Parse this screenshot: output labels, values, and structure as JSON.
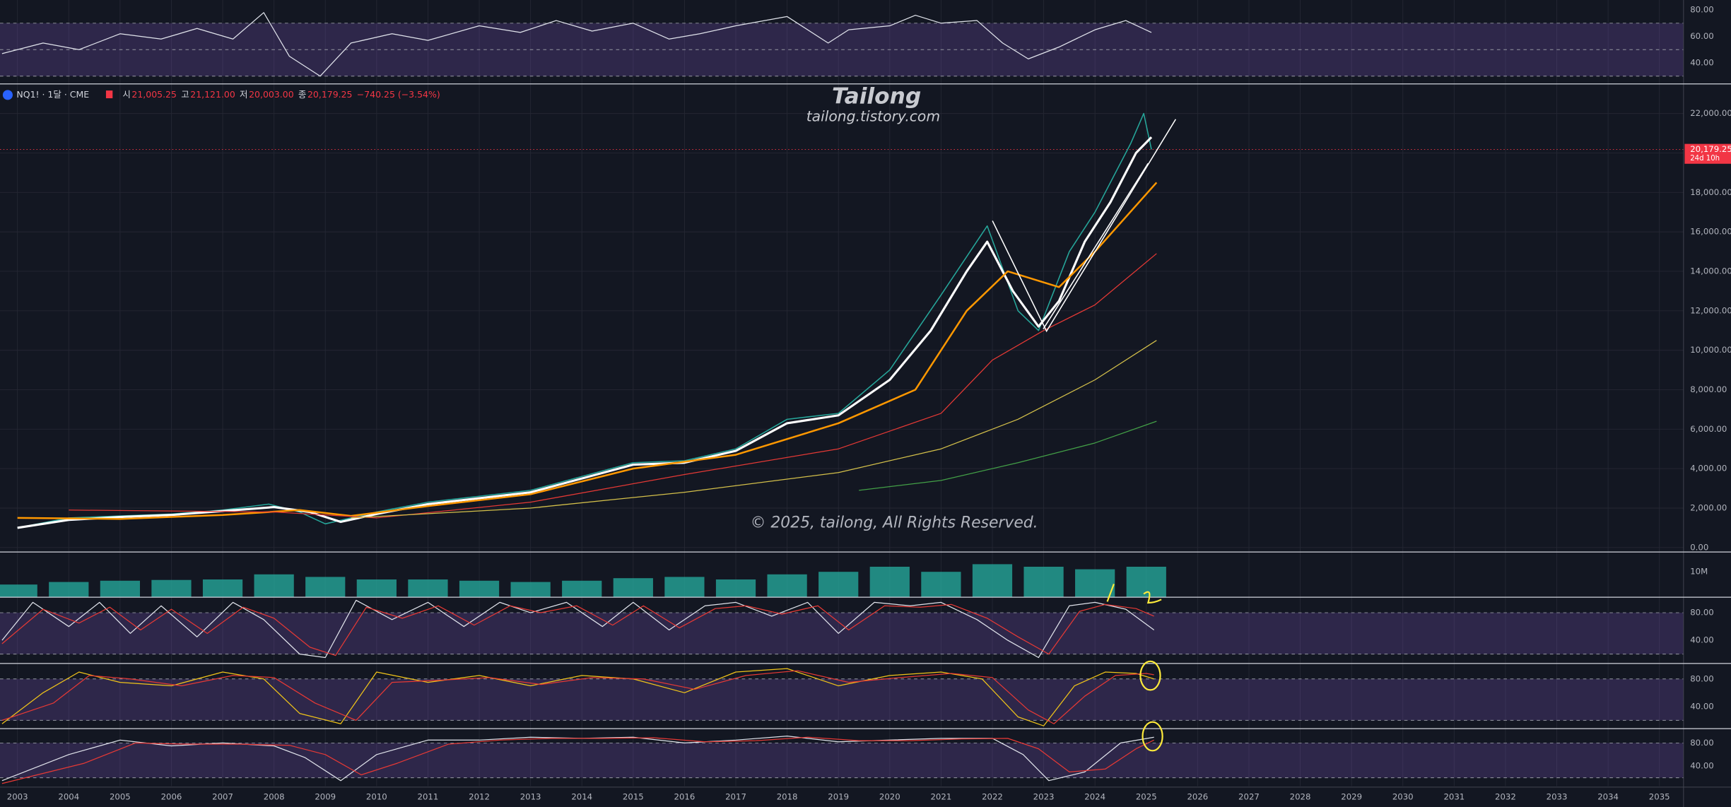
{
  "header": {
    "symbol": "NQ1! · 1달 · CME",
    "ohlc": [
      {
        "label": "시",
        "value": "21,005.25"
      },
      {
        "label": "고",
        "value": "21,121.00"
      },
      {
        "label": "저",
        "value": "20,003.00"
      },
      {
        "label": "종",
        "value": "20,179.25"
      }
    ],
    "change": "−740.25 (−3.54%)"
  },
  "watermark": {
    "title": "Tailong",
    "url": "tailong.tistory.com",
    "copyright": "© 2025, tailong, All Rights Reserved."
  },
  "chart_data": {
    "type": "line",
    "xlim": [
      2002.66,
      2035.47
    ],
    "xticks": [
      2003,
      2004,
      2005,
      2006,
      2007,
      2008,
      2009,
      2010,
      2011,
      2012,
      2013,
      2014,
      2015,
      2016,
      2017,
      2018,
      2019,
      2020,
      2021,
      2022,
      2023,
      2024,
      2025,
      2026,
      2027,
      2028,
      2029,
      2030,
      2031,
      2032,
      2033,
      2034,
      2035
    ],
    "panes": [
      {
        "type": "line",
        "ylim": [
          25.8,
          87.5
        ],
        "yticks": [
          {
            "value": 80,
            "label": "80.00"
          },
          {
            "value": 60,
            "label": "60.00"
          },
          {
            "value": 40,
            "label": "40.00"
          }
        ],
        "band": [
          30,
          70
        ],
        "hlines": [
          70,
          50,
          30
        ],
        "series": [
          {
            "color": "#e0e3eb",
            "width": 0.8,
            "x": [
              2002.7,
              2003.5,
              2004.2,
              2005,
              2005.8,
              2006.5,
              2007.2,
              2007.8,
              2008.3,
              2008.9,
              2009.5,
              2010.3,
              2011,
              2012,
              2012.8,
              2013.5,
              2014.2,
              2015,
              2015.7,
              2016.3,
              2017,
              2018,
              2018.8,
              2019.2,
              2020,
              2020.5,
              2021,
              2021.7,
              2022.2,
              2022.7,
              2023.3,
              2024,
              2024.6,
              2025.1
            ],
            "values": [
              47,
              55,
              50,
              62,
              58,
              66,
              58,
              78,
              45,
              30,
              55,
              62,
              57,
              68,
              63,
              72,
              64,
              70,
              58,
              62,
              68,
              75,
              55,
              65,
              68,
              76,
              70,
              72,
              55,
              43,
              52,
              65,
              72,
              63
            ]
          }
        ]
      },
      {
        "type": "line",
        "ylim": [
          -226,
          23500
        ],
        "yticks": [
          {
            "value": 0,
            "label": "0.00"
          },
          {
            "value": 2000,
            "label": "2,000.00"
          },
          {
            "value": 4000,
            "label": "4,000.00"
          },
          {
            "value": 6000,
            "label": "6,000.00"
          },
          {
            "value": 8000,
            "label": "8,000.00"
          },
          {
            "value": 10000,
            "label": "10,000.00"
          },
          {
            "value": 12000,
            "label": "12,000.00"
          },
          {
            "value": 14000,
            "label": "14,000.00"
          },
          {
            "value": 16000,
            "label": "16,000.00"
          },
          {
            "value": 18000,
            "label": "18,000.00"
          },
          {
            "value": 20000,
            "label": "20,000.00"
          },
          {
            "value": 22000,
            "label": "22,000.00"
          }
        ],
        "price_tag": {
          "value": 20179.25,
          "label": "20,179.25",
          "countdown": "24d 10h"
        },
        "series": [
          {
            "color": "#26a69a",
            "width": 1,
            "x": [
              2003,
              2004,
              2005,
              2006,
              2007,
              2007.9,
              2008.5,
              2009,
              2010,
              2011,
              2012,
              2013,
              2014,
              2015,
              2016,
              2017,
              2018,
              2019,
              2020,
              2021,
              2021.9,
              2022.5,
              2022.9,
              2023.5,
              2024,
              2024.7,
              2024.95,
              2025.1
            ],
            "values": [
              1000,
              1500,
              1600,
              1700,
              1900,
              2200,
              1800,
              1200,
              1800,
              2300,
              2600,
              2900,
              3600,
              4300,
              4400,
              5000,
              6500,
              6800,
              9000,
              12800,
              16300,
              12000,
              11000,
              15000,
              17000,
              20500,
              22000,
              20179.25
            ]
          },
          {
            "color": "#ffffff",
            "width": 2,
            "x": [
              2003,
              2004,
              2005,
              2006,
              2007,
              2008,
              2008.7,
              2009.3,
              2010,
              2011,
              2012,
              2013,
              2014,
              2015,
              2016,
              2017,
              2018,
              2019,
              2020,
              2020.8,
              2021.5,
              2021.9,
              2022.4,
              2022.9,
              2023.3,
              2023.8,
              2024.3,
              2024.8,
              2025.1
            ],
            "values": [
              1000,
              1400,
              1550,
              1650,
              1850,
              2050,
              1800,
              1300,
              1700,
              2200,
              2500,
              2800,
              3500,
              4200,
              4300,
              4900,
              6300,
              6700,
              8500,
              11000,
              14000,
              15500,
              13000,
              11200,
              12500,
              15500,
              17500,
              20000,
              20800
            ]
          },
          {
            "color": "#ff9800",
            "width": 1.6,
            "x": [
              2003,
              2005,
              2007,
              2008.5,
              2009.5,
              2011,
              2013,
              2015,
              2017,
              2019,
              2020.5,
              2021.5,
              2022.3,
              2023.3,
              2024,
              2025.2
            ],
            "values": [
              1500,
              1450,
              1650,
              1900,
              1600,
              2100,
              2700,
              4000,
              4700,
              6300,
              8000,
              12000,
              14000,
              13200,
              15000,
              18500
            ]
          },
          {
            "color": "#e53935",
            "width": 0.8,
            "x": [
              2004,
              2008,
              2010,
              2013,
              2016,
              2019,
              2021,
              2022,
              2023,
              2024,
              2025.2
            ],
            "values": [
              1900,
              1800,
              1500,
              2300,
              3700,
              5000,
              6800,
              9500,
              11000,
              12300,
              14900
            ]
          },
          {
            "color": "#d4c04a",
            "width": 0.8,
            "x": [
              2009.5,
              2013,
              2016,
              2019,
              2021,
              2022.5,
              2024,
              2025.2
            ],
            "values": [
              1500,
              2000,
              2800,
              3800,
              5000,
              6500,
              8500,
              10500
            ]
          },
          {
            "color": "#43a047",
            "width": 0.8,
            "x": [
              2019.4,
              2021,
              2022.5,
              2024,
              2025.2
            ],
            "values": [
              2900,
              3400,
              4300,
              5300,
              6400
            ]
          }
        ]
      },
      {
        "type": "bar",
        "ylim": [
          0,
          17800000
        ],
        "yticks": [
          {
            "value": 10000000,
            "label": "10M"
          }
        ],
        "series": [
          {
            "color": "#26a69a",
            "x": [
              2003,
              2004,
              2005,
              2006,
              2007,
              2008,
              2009,
              2010,
              2011,
              2012,
              2013,
              2014,
              2015,
              2016,
              2017,
              2018,
              2019,
              2020,
              2021,
              2022,
              2023,
              2024,
              2025
            ],
            "values": [
              5000000,
              6000000,
              6500000,
              6800000,
              7000000,
              9000000,
              8000000,
              7000000,
              7000000,
              6500000,
              6000000,
              6500000,
              7500000,
              8000000,
              7000000,
              9000000,
              10000000,
              12000000,
              10000000,
              13000000,
              12000000,
              11000000,
              12000000
            ]
          }
        ]
      },
      {
        "type": "line",
        "ylim": [
          6.4,
          102.4
        ],
        "yticks": [
          {
            "value": 80,
            "label": "80.00"
          },
          {
            "value": 40,
            "label": "40.00"
          }
        ],
        "band": [
          20,
          80
        ],
        "hlines": [
          80,
          20
        ],
        "series": [
          {
            "color": "#e0e3eb",
            "width": 0.8,
            "x": [
              2002.7,
              2003.3,
              2004,
              2004.6,
              2005.2,
              2005.8,
              2006.5,
              2007.2,
              2007.8,
              2008.5,
              2009,
              2009.6,
              2010.3,
              2011,
              2011.7,
              2012.4,
              2013,
              2013.7,
              2014.4,
              2015,
              2015.7,
              2016.4,
              2017,
              2017.7,
              2018.4,
              2019,
              2019.7,
              2020.4,
              2021,
              2021.7,
              2022.3,
              2022.9,
              2023.5,
              2024,
              2024.6,
              2025.15
            ],
            "values": [
              40,
              95,
              60,
              95,
              50,
              90,
              45,
              95,
              70,
              20,
              15,
              98,
              70,
              95,
              60,
              95,
              80,
              95,
              60,
              95,
              55,
              90,
              95,
              75,
              95,
              50,
              95,
              90,
              95,
              70,
              40,
              15,
              90,
              95,
              85,
              55
            ]
          },
          {
            "color": "#e53935",
            "width": 0.8,
            "x": [
              2002.7,
              2003.5,
              2004.2,
              2004.8,
              2005.4,
              2006,
              2006.7,
              2007.4,
              2008,
              2008.7,
              2009.2,
              2009.8,
              2010.5,
              2011.2,
              2011.9,
              2012.6,
              2013.2,
              2013.9,
              2014.6,
              2015.2,
              2015.9,
              2016.6,
              2017.2,
              2017.9,
              2018.6,
              2019.2,
              2019.9,
              2020.6,
              2021.2,
              2021.9,
              2022.5,
              2023.1,
              2023.7,
              2024.2,
              2024.8,
              2025.15
            ],
            "values": [
              35,
              85,
              65,
              88,
              55,
              85,
              50,
              88,
              72,
              30,
              18,
              88,
              72,
              90,
              62,
              90,
              80,
              90,
              62,
              90,
              58,
              86,
              90,
              78,
              90,
              55,
              90,
              88,
              92,
              72,
              45,
              20,
              82,
              92,
              86,
              75
            ]
          }
        ]
      },
      {
        "type": "line",
        "ylim": [
          8,
          102.4
        ],
        "yticks": [
          {
            "value": 80,
            "label": "80.00"
          },
          {
            "value": 40,
            "label": "40.00"
          }
        ],
        "band": [
          20,
          80
        ],
        "hlines": [
          80,
          20
        ],
        "series": [
          {
            "color": "#f0c419",
            "width": 0.8,
            "x": [
              2002.7,
              2003.5,
              2004.2,
              2005,
              2006,
              2007,
              2007.8,
              2008.5,
              2009.3,
              2010,
              2011,
              2012,
              2013,
              2014,
              2015,
              2016,
              2017,
              2018,
              2019,
              2020,
              2021,
              2021.8,
              2022.5,
              2023,
              2023.6,
              2024.2,
              2024.8,
              2025.15
            ],
            "values": [
              15,
              60,
              90,
              75,
              70,
              90,
              80,
              30,
              15,
              90,
              75,
              85,
              70,
              85,
              80,
              60,
              90,
              95,
              70,
              85,
              90,
              80,
              25,
              12,
              70,
              90,
              88,
              80
            ]
          },
          {
            "color": "#e53935",
            "width": 0.8,
            "x": [
              2002.7,
              2003.7,
              2004.4,
              2005.2,
              2006.2,
              2007.2,
              2008,
              2008.8,
              2009.6,
              2010.3,
              2011.2,
              2012.2,
              2013.2,
              2014.2,
              2015.2,
              2016.2,
              2017.2,
              2018.2,
              2019.2,
              2020.2,
              2021.2,
              2022,
              2022.7,
              2023.2,
              2023.8,
              2024.4,
              2025,
              2025.15
            ],
            "values": [
              20,
              45,
              85,
              80,
              70,
              85,
              82,
              45,
              20,
              75,
              78,
              82,
              72,
              82,
              80,
              65,
              85,
              92,
              75,
              82,
              88,
              82,
              35,
              15,
              55,
              85,
              88,
              86
            ]
          }
        ]
      },
      {
        "type": "line",
        "ylim": [
          5.7,
          104.8
        ],
        "yticks": [
          {
            "value": 80,
            "label": "80.00"
          },
          {
            "value": 40,
            "label": "40.00"
          }
        ],
        "band": [
          20,
          80
        ],
        "hlines": [
          80,
          20
        ],
        "series": [
          {
            "color": "#e0e3eb",
            "width": 0.8,
            "x": [
              2002.7,
              2004,
              2005,
              2006,
              2007,
              2008,
              2008.6,
              2009.3,
              2010,
              2011,
              2012,
              2013,
              2014,
              2015,
              2016,
              2017,
              2018,
              2019,
              2020,
              2021,
              2022,
              2022.6,
              2023.1,
              2023.8,
              2024.5,
              2025.15
            ],
            "values": [
              15,
              60,
              85,
              75,
              80,
              75,
              55,
              15,
              60,
              85,
              85,
              90,
              88,
              90,
              80,
              85,
              92,
              82,
              85,
              88,
              88,
              60,
              15,
              30,
              80,
              90
            ]
          },
          {
            "color": "#e53935",
            "width": 0.8,
            "x": [
              2002.7,
              2004.3,
              2005.3,
              2006.3,
              2007.3,
              2008.3,
              2009,
              2009.7,
              2010.4,
              2011.4,
              2012.4,
              2013.4,
              2014.4,
              2015.4,
              2016.4,
              2017.4,
              2018.4,
              2019.4,
              2020.4,
              2021.4,
              2022.3,
              2022.9,
              2023.5,
              2024.2,
              2024.8,
              2025.15
            ],
            "values": [
              10,
              45,
              80,
              78,
              78,
              76,
              60,
              25,
              45,
              78,
              85,
              88,
              88,
              89,
              82,
              84,
              90,
              84,
              84,
              87,
              88,
              70,
              30,
              35,
              70,
              85
            ]
          }
        ]
      }
    ]
  }
}
